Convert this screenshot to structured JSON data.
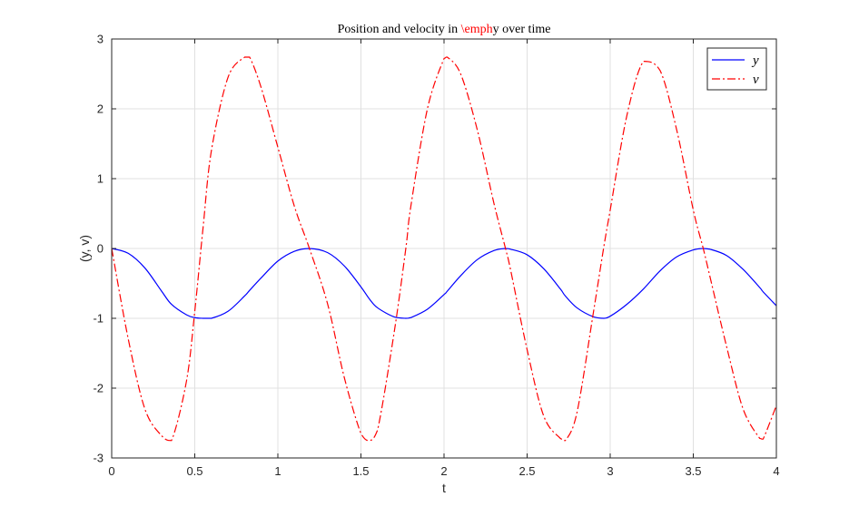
{
  "chart_data": {
    "type": "line",
    "title": {
      "prefix": "Position and velocity in ",
      "highlight": "\\emph",
      "suffix": "y over time",
      "highlight_color": "#ff0000"
    },
    "xlabel": "t",
    "ylabel": "(y, v)",
    "xlim": [
      0,
      4
    ],
    "ylim": [
      -3,
      3
    ],
    "xticks": [
      0,
      0.5,
      1,
      1.5,
      2,
      2.5,
      3,
      3.5,
      4
    ],
    "xtick_labels": [
      "0",
      "0.5",
      "1",
      "1.5",
      "2",
      "2.5",
      "3",
      "3.5",
      "4"
    ],
    "yticks": [
      -3,
      -2,
      -1,
      0,
      1,
      2,
      3
    ],
    "ytick_labels": [
      "-3",
      "-2",
      "-1",
      "0",
      "1",
      "2",
      "3"
    ],
    "grid": true,
    "legend_position": "top-right",
    "x": [
      0,
      0.1,
      0.2,
      0.3,
      0.36,
      0.45,
      0.5,
      0.55,
      0.6,
      0.7,
      0.8,
      0.83,
      0.9,
      1.0,
      1.1,
      1.19,
      1.3,
      1.4,
      1.5,
      1.55,
      1.6,
      1.7,
      1.77,
      1.8,
      1.9,
      2.0,
      2.02,
      2.1,
      2.2,
      2.3,
      2.37,
      2.4,
      2.5,
      2.6,
      2.7,
      2.73,
      2.8,
      2.9,
      2.96,
      3.0,
      3.1,
      3.2,
      3.3,
      3.4,
      3.5,
      3.56,
      3.6,
      3.7,
      3.8,
      3.9,
      3.92,
      4.0
    ],
    "series": [
      {
        "name": "y",
        "color": "#0000ff",
        "dash": "solid",
        "values": [
          0,
          -0.07,
          -0.28,
          -0.61,
          -0.8,
          -0.95,
          -0.99,
          -1.0,
          -1.0,
          -0.9,
          -0.68,
          -0.6,
          -0.42,
          -0.18,
          -0.04,
          0,
          -0.06,
          -0.25,
          -0.55,
          -0.72,
          -0.85,
          -0.98,
          -1.0,
          -0.99,
          -0.87,
          -0.66,
          -0.61,
          -0.39,
          -0.16,
          -0.03,
          0,
          -0.01,
          -0.09,
          -0.29,
          -0.58,
          -0.68,
          -0.85,
          -0.98,
          -1.0,
          -0.97,
          -0.8,
          -0.58,
          -0.32,
          -0.12,
          -0.02,
          0,
          -0.01,
          -0.1,
          -0.3,
          -0.56,
          -0.62,
          -0.82
        ]
      },
      {
        "name": "v",
        "color": "#ff0000",
        "dash": "dashdot",
        "values": [
          0,
          -1.3,
          -2.3,
          -2.68,
          -2.75,
          -1.9,
          -0.9,
          0.3,
          1.4,
          2.45,
          2.74,
          2.74,
          2.3,
          1.45,
          0.6,
          0.0,
          -0.8,
          -1.85,
          -2.65,
          -2.75,
          -2.6,
          -1.2,
          0.0,
          0.6,
          2.0,
          2.72,
          2.74,
          2.5,
          1.7,
          0.65,
          0.0,
          -0.3,
          -1.45,
          -2.4,
          -2.72,
          -2.75,
          -2.35,
          -0.9,
          0.0,
          0.55,
          1.9,
          2.68,
          2.55,
          1.7,
          0.55,
          0.0,
          -0.4,
          -1.4,
          -2.3,
          -2.72,
          -2.73,
          -2.25
        ]
      }
    ]
  }
}
